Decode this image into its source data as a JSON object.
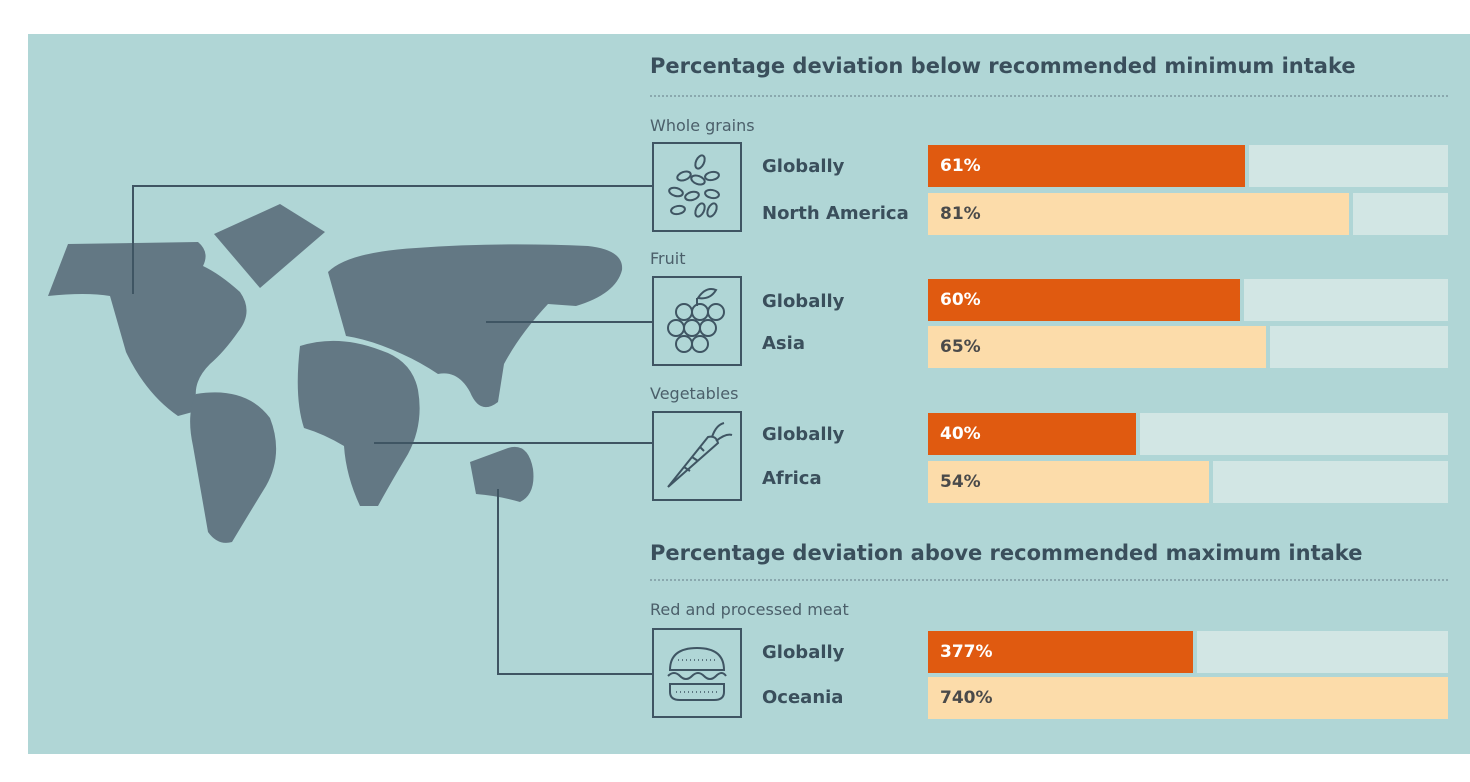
{
  "chart_data": {
    "type": "bar",
    "sections": [
      {
        "title": "Percentage deviation below recommended minimum intake",
        "groups": [
          {
            "name": "Whole grains",
            "icon": "grain-icon",
            "series": [
              {
                "label": "Globally",
                "value": 61,
                "display": "61%",
                "kind": "global"
              },
              {
                "label": "North America",
                "value": 81,
                "display": "81%",
                "kind": "region"
              }
            ]
          },
          {
            "name": "Fruit",
            "icon": "grapes-icon",
            "series": [
              {
                "label": "Globally",
                "value": 60,
                "display": "60%",
                "kind": "global"
              },
              {
                "label": "Asia",
                "value": 65,
                "display": "65%",
                "kind": "region"
              }
            ]
          },
          {
            "name": "Vegetables",
            "icon": "carrot-icon",
            "series": [
              {
                "label": "Globally",
                "value": 40,
                "display": "40%",
                "kind": "global"
              },
              {
                "label": "Africa",
                "value": 54,
                "display": "54%",
                "kind": "region"
              }
            ]
          }
        ],
        "scale_max": 100
      },
      {
        "title": "Percentage deviation above recommended maximum intake",
        "groups": [
          {
            "name": "Red and processed meat",
            "icon": "burger-icon",
            "series": [
              {
                "label": "Globally",
                "value": 377,
                "display": "377%",
                "kind": "global"
              },
              {
                "label": "Oceania",
                "value": 740,
                "display": "740%",
                "kind": "region"
              }
            ]
          }
        ],
        "scale_max": 740
      }
    ]
  },
  "colors": {
    "panel_bg": "#b0d6d6",
    "map": "#637884",
    "global_bar": "#e05a10",
    "region_bar": "#fcdcaa",
    "track": "#d2e6e4",
    "text": "#3a4f5c"
  }
}
